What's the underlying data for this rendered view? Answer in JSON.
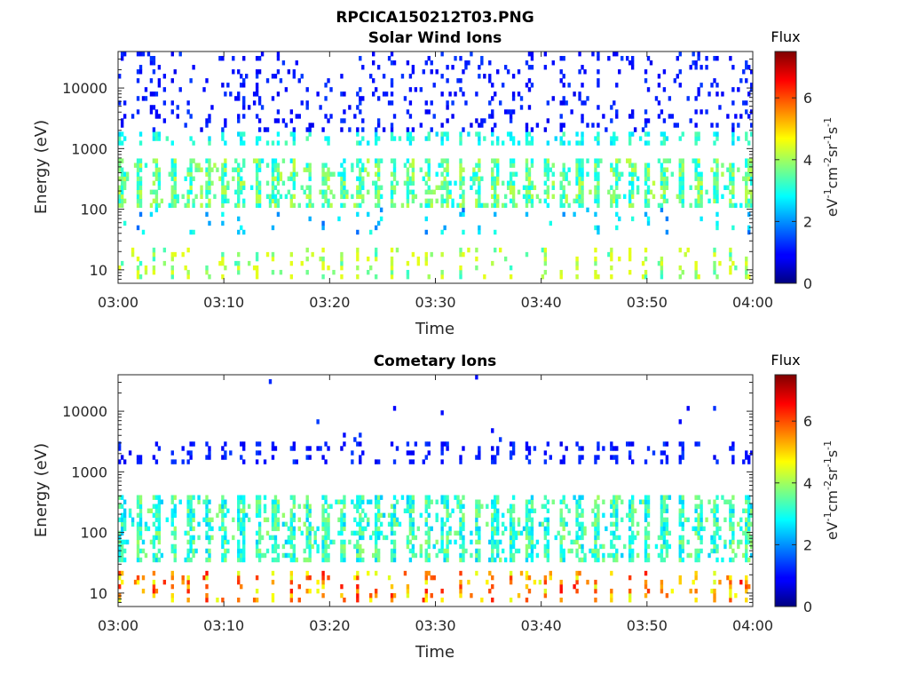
{
  "figure": {
    "title": "RPCICA150212T03.PNG"
  },
  "chart_data": [
    {
      "type": "heatmap",
      "title": "Solar Wind Ions",
      "xlabel": "Time",
      "ylabel": "Energy (eV)",
      "x_ticks": [
        "03:00",
        "03:10",
        "03:20",
        "03:30",
        "03:40",
        "03:50",
        "04:00"
      ],
      "xlim": [
        "03:00",
        "04:00"
      ],
      "y_scale": "log",
      "y_ticks": [
        10,
        100,
        1000,
        10000
      ],
      "y_tick_labels": [
        "10",
        "100",
        "1000",
        "10000"
      ],
      "ylim": [
        6,
        40000
      ],
      "colorbar": {
        "title": "Flux",
        "label": "eV-1cm-2sr-1s-1",
        "range": [
          0,
          7.5
        ],
        "ticks": [
          0,
          2,
          4,
          6
        ],
        "colormap": "jet"
      },
      "sweeps": {
        "period_min": 1.6,
        "high_energy_flux": 0.8,
        "core_energy_range_eV": [
          100,
          700
        ],
        "core_flux": 3.5,
        "mid_energy_eV": 1500,
        "mid_flux": 3.0,
        "low_energy_range_eV": [
          7,
          25
        ],
        "low_flux": 3.8,
        "max_flux": 4.5
      }
    },
    {
      "type": "heatmap",
      "title": "Cometary Ions",
      "xlabel": "Time",
      "ylabel": "Energy (eV)",
      "x_ticks": [
        "03:00",
        "03:10",
        "03:20",
        "03:30",
        "03:40",
        "03:50",
        "04:00"
      ],
      "xlim": [
        "03:00",
        "04:00"
      ],
      "y_scale": "log",
      "y_ticks": [
        10,
        100,
        1000,
        10000
      ],
      "y_tick_labels": [
        "10",
        "100",
        "1000",
        "10000"
      ],
      "ylim": [
        6,
        40000
      ],
      "colorbar": {
        "title": "Flux",
        "label": "eV-1cm-2sr-1s-1",
        "range": [
          0,
          7.5
        ],
        "ticks": [
          0,
          2,
          4,
          6
        ],
        "colormap": "jet"
      },
      "sweeps": {
        "period_min": 1.6,
        "high_energy_eV": 2000,
        "high_energy_flux": 0.8,
        "core_energy_range_eV": [
          30,
          400
        ],
        "core_flux": 3.2,
        "low_energy_range_eV": [
          7,
          25
        ],
        "low_flux": 5.0,
        "max_flux": 6.5
      }
    }
  ]
}
